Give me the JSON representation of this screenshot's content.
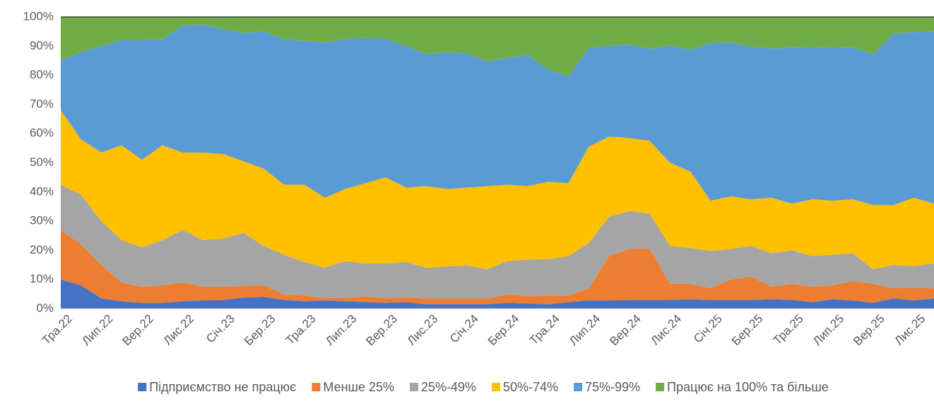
{
  "chart_data": {
    "type": "stacked_area",
    "categories": [
      "Тра.22",
      null,
      "Лип.22",
      null,
      "Вер.22",
      null,
      "Лис.22",
      null,
      "Січ.23",
      null,
      "Бер.23",
      null,
      "Тра.23",
      null,
      "Лип.23",
      null,
      "Вер.23",
      null,
      "Лис.23",
      null,
      "Січ.24",
      null,
      "Бер.24",
      null,
      "Тра.24",
      null,
      "Лип.24",
      null,
      "Вер.24",
      null,
      "Лис.24",
      null,
      "Січ.25",
      null,
      "Бер.25",
      null,
      "Тра.25",
      null,
      "Лип.25",
      null,
      "Вер.25",
      null,
      "Лис.25",
      null
    ],
    "series": [
      {
        "name": "Підприємство не працює",
        "color": "#4472c4",
        "values": [
          10,
          8,
          3.5,
          2.5,
          2,
          2,
          2.5,
          2.8,
          3,
          3.8,
          4,
          3,
          2.5,
          2.8,
          2.5,
          2.3,
          2,
          2.2,
          1.5,
          1.5,
          1.5,
          1.5,
          2,
          1.8,
          1.5,
          2.2,
          2.8,
          2.8,
          3,
          3,
          3,
          3.2,
          3,
          3,
          3,
          3.2,
          3,
          2.2,
          3.2,
          2.8,
          2,
          3.5,
          2.8,
          3.5
        ]
      },
      {
        "name": "Менше 25%",
        "color": "#ed7d31",
        "values": [
          17,
          14,
          11.5,
          6.5,
          5.5,
          6,
          6.5,
          4.7,
          4.5,
          4,
          4,
          1.8,
          2,
          0.7,
          1.3,
          1.9,
          1.5,
          1.6,
          2,
          2,
          2,
          2,
          2.8,
          2.5,
          3,
          2.3,
          4.2,
          15.2,
          17.5,
          17.5,
          5.5,
          5.3,
          4,
          7,
          8,
          4.3,
          5.5,
          5.3,
          4.8,
          6.7,
          6.5,
          3.5,
          4.4,
          3.5
        ]
      },
      {
        "name": "25%-49%",
        "color": "#a5a5a5",
        "values": [
          15.5,
          17,
          15,
          14.5,
          13.5,
          15.5,
          18,
          16,
          16.5,
          18.2,
          13.5,
          13.7,
          11.5,
          10.5,
          12.5,
          11.3,
          12,
          12.2,
          10.5,
          11,
          11.3,
          10,
          11.5,
          12.5,
          12.5,
          13.5,
          15.5,
          13.5,
          13,
          12,
          13,
          12.3,
          12.8,
          10.5,
          10.5,
          11.5,
          11.5,
          10.5,
          10.5,
          9.5,
          5,
          8,
          7.3,
          8.5
        ]
      },
      {
        "name": "50%-74%",
        "color": "#ffc000",
        "values": [
          25.5,
          19,
          23.5,
          32.5,
          30,
          32.5,
          26.5,
          30,
          29,
          24.5,
          26.5,
          24,
          26.5,
          24,
          24.7,
          27.5,
          29.5,
          25.5,
          28,
          26.5,
          26.7,
          28.5,
          26.2,
          25.2,
          26.5,
          25,
          33,
          27.5,
          25,
          25,
          28.5,
          26.2,
          17.2,
          18,
          16,
          19,
          16,
          19.5,
          18.5,
          18.5,
          22,
          20.5,
          23.5,
          20.5
        ]
      },
      {
        "name": "75%-99%",
        "color": "#5b9bd5",
        "values": [
          17,
          30,
          36.5,
          36,
          41,
          36.3,
          43.5,
          43.8,
          42.8,
          44,
          47,
          49.8,
          49.3,
          53.2,
          51.5,
          49.8,
          47.5,
          48.5,
          45.3,
          46.8,
          46,
          42.7,
          43.5,
          45,
          38.5,
          36.5,
          34,
          31,
          32,
          31.5,
          40.2,
          41.8,
          54,
          52.7,
          52.3,
          51.2,
          53.5,
          52.2,
          52.6,
          52,
          51.7,
          58.8,
          56.8,
          59
        ]
      },
      {
        "name": "Працює на 100% та більше",
        "color": "#70ad47",
        "values": [
          15,
          12,
          10,
          8,
          8,
          7.7,
          3,
          2.7,
          4.2,
          5.5,
          5,
          7.7,
          8.2,
          8.8,
          7.5,
          7.2,
          7.5,
          10,
          12.7,
          12.2,
          12.5,
          15.3,
          14,
          13,
          18,
          20.5,
          10.5,
          10,
          9.5,
          11,
          9.8,
          11.2,
          9,
          8.8,
          10.2,
          10.8,
          10.5,
          10.3,
          10.4,
          10.5,
          12.8,
          5.7,
          5.2,
          5
        ]
      }
    ],
    "ylim": [
      0,
      100
    ],
    "yticks": [
      {
        "value": 0,
        "label": "0%"
      },
      {
        "value": 10,
        "label": "10%"
      },
      {
        "value": 20,
        "label": "20%"
      },
      {
        "value": 30,
        "label": "30%"
      },
      {
        "value": 40,
        "label": "40%"
      },
      {
        "value": 50,
        "label": "50%"
      },
      {
        "value": 60,
        "label": "60%"
      },
      {
        "value": 70,
        "label": "70%"
      },
      {
        "value": 80,
        "label": "80%"
      },
      {
        "value": 90,
        "label": "90%"
      },
      {
        "value": 100,
        "label": "100%"
      }
    ],
    "legend": "bottom"
  }
}
